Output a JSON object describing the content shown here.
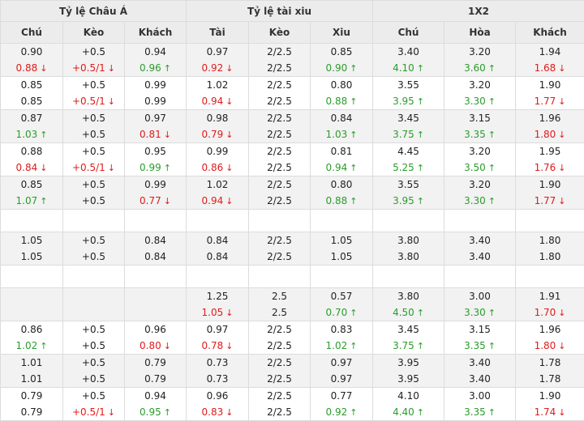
{
  "groups": [
    "Tỷ lệ Châu Á",
    "Tỷ lệ tài xiu",
    "1X2"
  ],
  "columns": [
    "Chú",
    "Kèo",
    "Khách",
    "Tài",
    "Kèo",
    "Xiu",
    "Chú",
    "Hòa",
    "Khách"
  ],
  "colors": {
    "up": "#2a9d2a",
    "down": "#e01b1b",
    "header_bg": "#ececec",
    "stripe_bg": "#f2f2f2"
  },
  "arrows": {
    "up": "↑",
    "down": "↓"
  },
  "rows": [
    {
      "kind": "data",
      "cells": [
        [
          {
            "v": "0.90"
          },
          {
            "v": "0.88",
            "d": "down"
          }
        ],
        [
          {
            "v": "+0.5"
          },
          {
            "v": "+0.5/1",
            "d": "down"
          }
        ],
        [
          {
            "v": "0.94"
          },
          {
            "v": "0.96",
            "d": "up"
          }
        ],
        [
          {
            "v": "0.97"
          },
          {
            "v": "0.92",
            "d": "down"
          }
        ],
        [
          {
            "v": "2/2.5"
          },
          {
            "v": "2/2.5"
          }
        ],
        [
          {
            "v": "0.85"
          },
          {
            "v": "0.90",
            "d": "up"
          }
        ],
        [
          {
            "v": "3.40"
          },
          {
            "v": "4.10",
            "d": "up"
          }
        ],
        [
          {
            "v": "3.20"
          },
          {
            "v": "3.60",
            "d": "up"
          }
        ],
        [
          {
            "v": "1.94"
          },
          {
            "v": "1.68",
            "d": "down"
          }
        ]
      ]
    },
    {
      "kind": "data",
      "cells": [
        [
          {
            "v": "0.85"
          },
          {
            "v": "0.85"
          }
        ],
        [
          {
            "v": "+0.5"
          },
          {
            "v": "+0.5/1",
            "d": "down"
          }
        ],
        [
          {
            "v": "0.99"
          },
          {
            "v": "0.99"
          }
        ],
        [
          {
            "v": "1.02"
          },
          {
            "v": "0.94",
            "d": "down"
          }
        ],
        [
          {
            "v": "2/2.5"
          },
          {
            "v": "2/2.5"
          }
        ],
        [
          {
            "v": "0.80"
          },
          {
            "v": "0.88",
            "d": "up"
          }
        ],
        [
          {
            "v": "3.55"
          },
          {
            "v": "3.95",
            "d": "up"
          }
        ],
        [
          {
            "v": "3.20"
          },
          {
            "v": "3.30",
            "d": "up"
          }
        ],
        [
          {
            "v": "1.90"
          },
          {
            "v": "1.77",
            "d": "down"
          }
        ]
      ]
    },
    {
      "kind": "data",
      "cells": [
        [
          {
            "v": "0.87"
          },
          {
            "v": "1.03",
            "d": "up"
          }
        ],
        [
          {
            "v": "+0.5"
          },
          {
            "v": "+0.5"
          }
        ],
        [
          {
            "v": "0.97"
          },
          {
            "v": "0.81",
            "d": "down"
          }
        ],
        [
          {
            "v": "0.98"
          },
          {
            "v": "0.79",
            "d": "down"
          }
        ],
        [
          {
            "v": "2/2.5"
          },
          {
            "v": "2/2.5"
          }
        ],
        [
          {
            "v": "0.84"
          },
          {
            "v": "1.03",
            "d": "up"
          }
        ],
        [
          {
            "v": "3.45"
          },
          {
            "v": "3.75",
            "d": "up"
          }
        ],
        [
          {
            "v": "3.15"
          },
          {
            "v": "3.35",
            "d": "up"
          }
        ],
        [
          {
            "v": "1.96"
          },
          {
            "v": "1.80",
            "d": "down"
          }
        ]
      ]
    },
    {
      "kind": "data",
      "cells": [
        [
          {
            "v": "0.88"
          },
          {
            "v": "0.84",
            "d": "down"
          }
        ],
        [
          {
            "v": "+0.5"
          },
          {
            "v": "+0.5/1",
            "d": "down"
          }
        ],
        [
          {
            "v": "0.95"
          },
          {
            "v": "0.99",
            "d": "up"
          }
        ],
        [
          {
            "v": "0.99"
          },
          {
            "v": "0.86",
            "d": "down"
          }
        ],
        [
          {
            "v": "2/2.5"
          },
          {
            "v": "2/2.5"
          }
        ],
        [
          {
            "v": "0.81"
          },
          {
            "v": "0.94",
            "d": "up"
          }
        ],
        [
          {
            "v": "4.45"
          },
          {
            "v": "5.25",
            "d": "up"
          }
        ],
        [
          {
            "v": "3.20"
          },
          {
            "v": "3.50",
            "d": "up"
          }
        ],
        [
          {
            "v": "1.95"
          },
          {
            "v": "1.76",
            "d": "down"
          }
        ]
      ]
    },
    {
      "kind": "data",
      "cells": [
        [
          {
            "v": "0.85"
          },
          {
            "v": "1.07",
            "d": "up"
          }
        ],
        [
          {
            "v": "+0.5"
          },
          {
            "v": "+0.5"
          }
        ],
        [
          {
            "v": "0.99"
          },
          {
            "v": "0.77",
            "d": "down"
          }
        ],
        [
          {
            "v": "1.02"
          },
          {
            "v": "0.94",
            "d": "down"
          }
        ],
        [
          {
            "v": "2/2.5"
          },
          {
            "v": "2/2.5"
          }
        ],
        [
          {
            "v": "0.80"
          },
          {
            "v": "0.88",
            "d": "up"
          }
        ],
        [
          {
            "v": "3.55"
          },
          {
            "v": "3.95",
            "d": "up"
          }
        ],
        [
          {
            "v": "3.20"
          },
          {
            "v": "3.30",
            "d": "up"
          }
        ],
        [
          {
            "v": "1.90"
          },
          {
            "v": "1.77",
            "d": "down"
          }
        ]
      ]
    },
    {
      "kind": "empty"
    },
    {
      "kind": "data",
      "cells": [
        [
          {
            "v": "1.05"
          },
          {
            "v": "1.05"
          }
        ],
        [
          {
            "v": "+0.5"
          },
          {
            "v": "+0.5"
          }
        ],
        [
          {
            "v": "0.84"
          },
          {
            "v": "0.84"
          }
        ],
        [
          {
            "v": "0.84"
          },
          {
            "v": "0.84"
          }
        ],
        [
          {
            "v": "2/2.5"
          },
          {
            "v": "2/2.5"
          }
        ],
        [
          {
            "v": "1.05"
          },
          {
            "v": "1.05"
          }
        ],
        [
          {
            "v": "3.80"
          },
          {
            "v": "3.80"
          }
        ],
        [
          {
            "v": "3.40"
          },
          {
            "v": "3.40"
          }
        ],
        [
          {
            "v": "1.80"
          },
          {
            "v": "1.80"
          }
        ]
      ]
    },
    {
      "kind": "empty"
    },
    {
      "kind": "data",
      "cells": [
        [],
        [],
        [],
        [
          {
            "v": "1.25"
          },
          {
            "v": "1.05",
            "d": "down"
          }
        ],
        [
          {
            "v": "2.5"
          },
          {
            "v": "2.5"
          }
        ],
        [
          {
            "v": "0.57"
          },
          {
            "v": "0.70",
            "d": "up"
          }
        ],
        [
          {
            "v": "3.80"
          },
          {
            "v": "4.50",
            "d": "up"
          }
        ],
        [
          {
            "v": "3.00"
          },
          {
            "v": "3.30",
            "d": "up"
          }
        ],
        [
          {
            "v": "1.91"
          },
          {
            "v": "1.70",
            "d": "down"
          }
        ]
      ]
    },
    {
      "kind": "data",
      "cells": [
        [
          {
            "v": "0.86"
          },
          {
            "v": "1.02",
            "d": "up"
          }
        ],
        [
          {
            "v": "+0.5"
          },
          {
            "v": "+0.5"
          }
        ],
        [
          {
            "v": "0.96"
          },
          {
            "v": "0.80",
            "d": "down"
          }
        ],
        [
          {
            "v": "0.97"
          },
          {
            "v": "0.78",
            "d": "down"
          }
        ],
        [
          {
            "v": "2/2.5"
          },
          {
            "v": "2/2.5"
          }
        ],
        [
          {
            "v": "0.83"
          },
          {
            "v": "1.02",
            "d": "up"
          }
        ],
        [
          {
            "v": "3.45"
          },
          {
            "v": "3.75",
            "d": "up"
          }
        ],
        [
          {
            "v": "3.15"
          },
          {
            "v": "3.35",
            "d": "up"
          }
        ],
        [
          {
            "v": "1.96"
          },
          {
            "v": "1.80",
            "d": "down"
          }
        ]
      ]
    },
    {
      "kind": "data",
      "cells": [
        [
          {
            "v": "1.01"
          },
          {
            "v": "1.01"
          }
        ],
        [
          {
            "v": "+0.5"
          },
          {
            "v": "+0.5"
          }
        ],
        [
          {
            "v": "0.79"
          },
          {
            "v": "0.79"
          }
        ],
        [
          {
            "v": "0.73"
          },
          {
            "v": "0.73"
          }
        ],
        [
          {
            "v": "2/2.5"
          },
          {
            "v": "2/2.5"
          }
        ],
        [
          {
            "v": "0.97"
          },
          {
            "v": "0.97"
          }
        ],
        [
          {
            "v": "3.95"
          },
          {
            "v": "3.95"
          }
        ],
        [
          {
            "v": "3.40"
          },
          {
            "v": "3.40"
          }
        ],
        [
          {
            "v": "1.78"
          },
          {
            "v": "1.78"
          }
        ]
      ]
    },
    {
      "kind": "data",
      "cells": [
        [
          {
            "v": "0.79"
          },
          {
            "v": "0.79"
          }
        ],
        [
          {
            "v": "+0.5"
          },
          {
            "v": "+0.5/1",
            "d": "down"
          }
        ],
        [
          {
            "v": "0.94"
          },
          {
            "v": "0.95",
            "d": "up"
          }
        ],
        [
          {
            "v": "0.96"
          },
          {
            "v": "0.83",
            "d": "down"
          }
        ],
        [
          {
            "v": "2/2.5"
          },
          {
            "v": "2/2.5"
          }
        ],
        [
          {
            "v": "0.77"
          },
          {
            "v": "0.92",
            "d": "up"
          }
        ],
        [
          {
            "v": "4.10"
          },
          {
            "v": "4.40",
            "d": "up"
          }
        ],
        [
          {
            "v": "3.00"
          },
          {
            "v": "3.35",
            "d": "up"
          }
        ],
        [
          {
            "v": "1.90"
          },
          {
            "v": "1.74",
            "d": "down"
          }
        ]
      ]
    }
  ]
}
